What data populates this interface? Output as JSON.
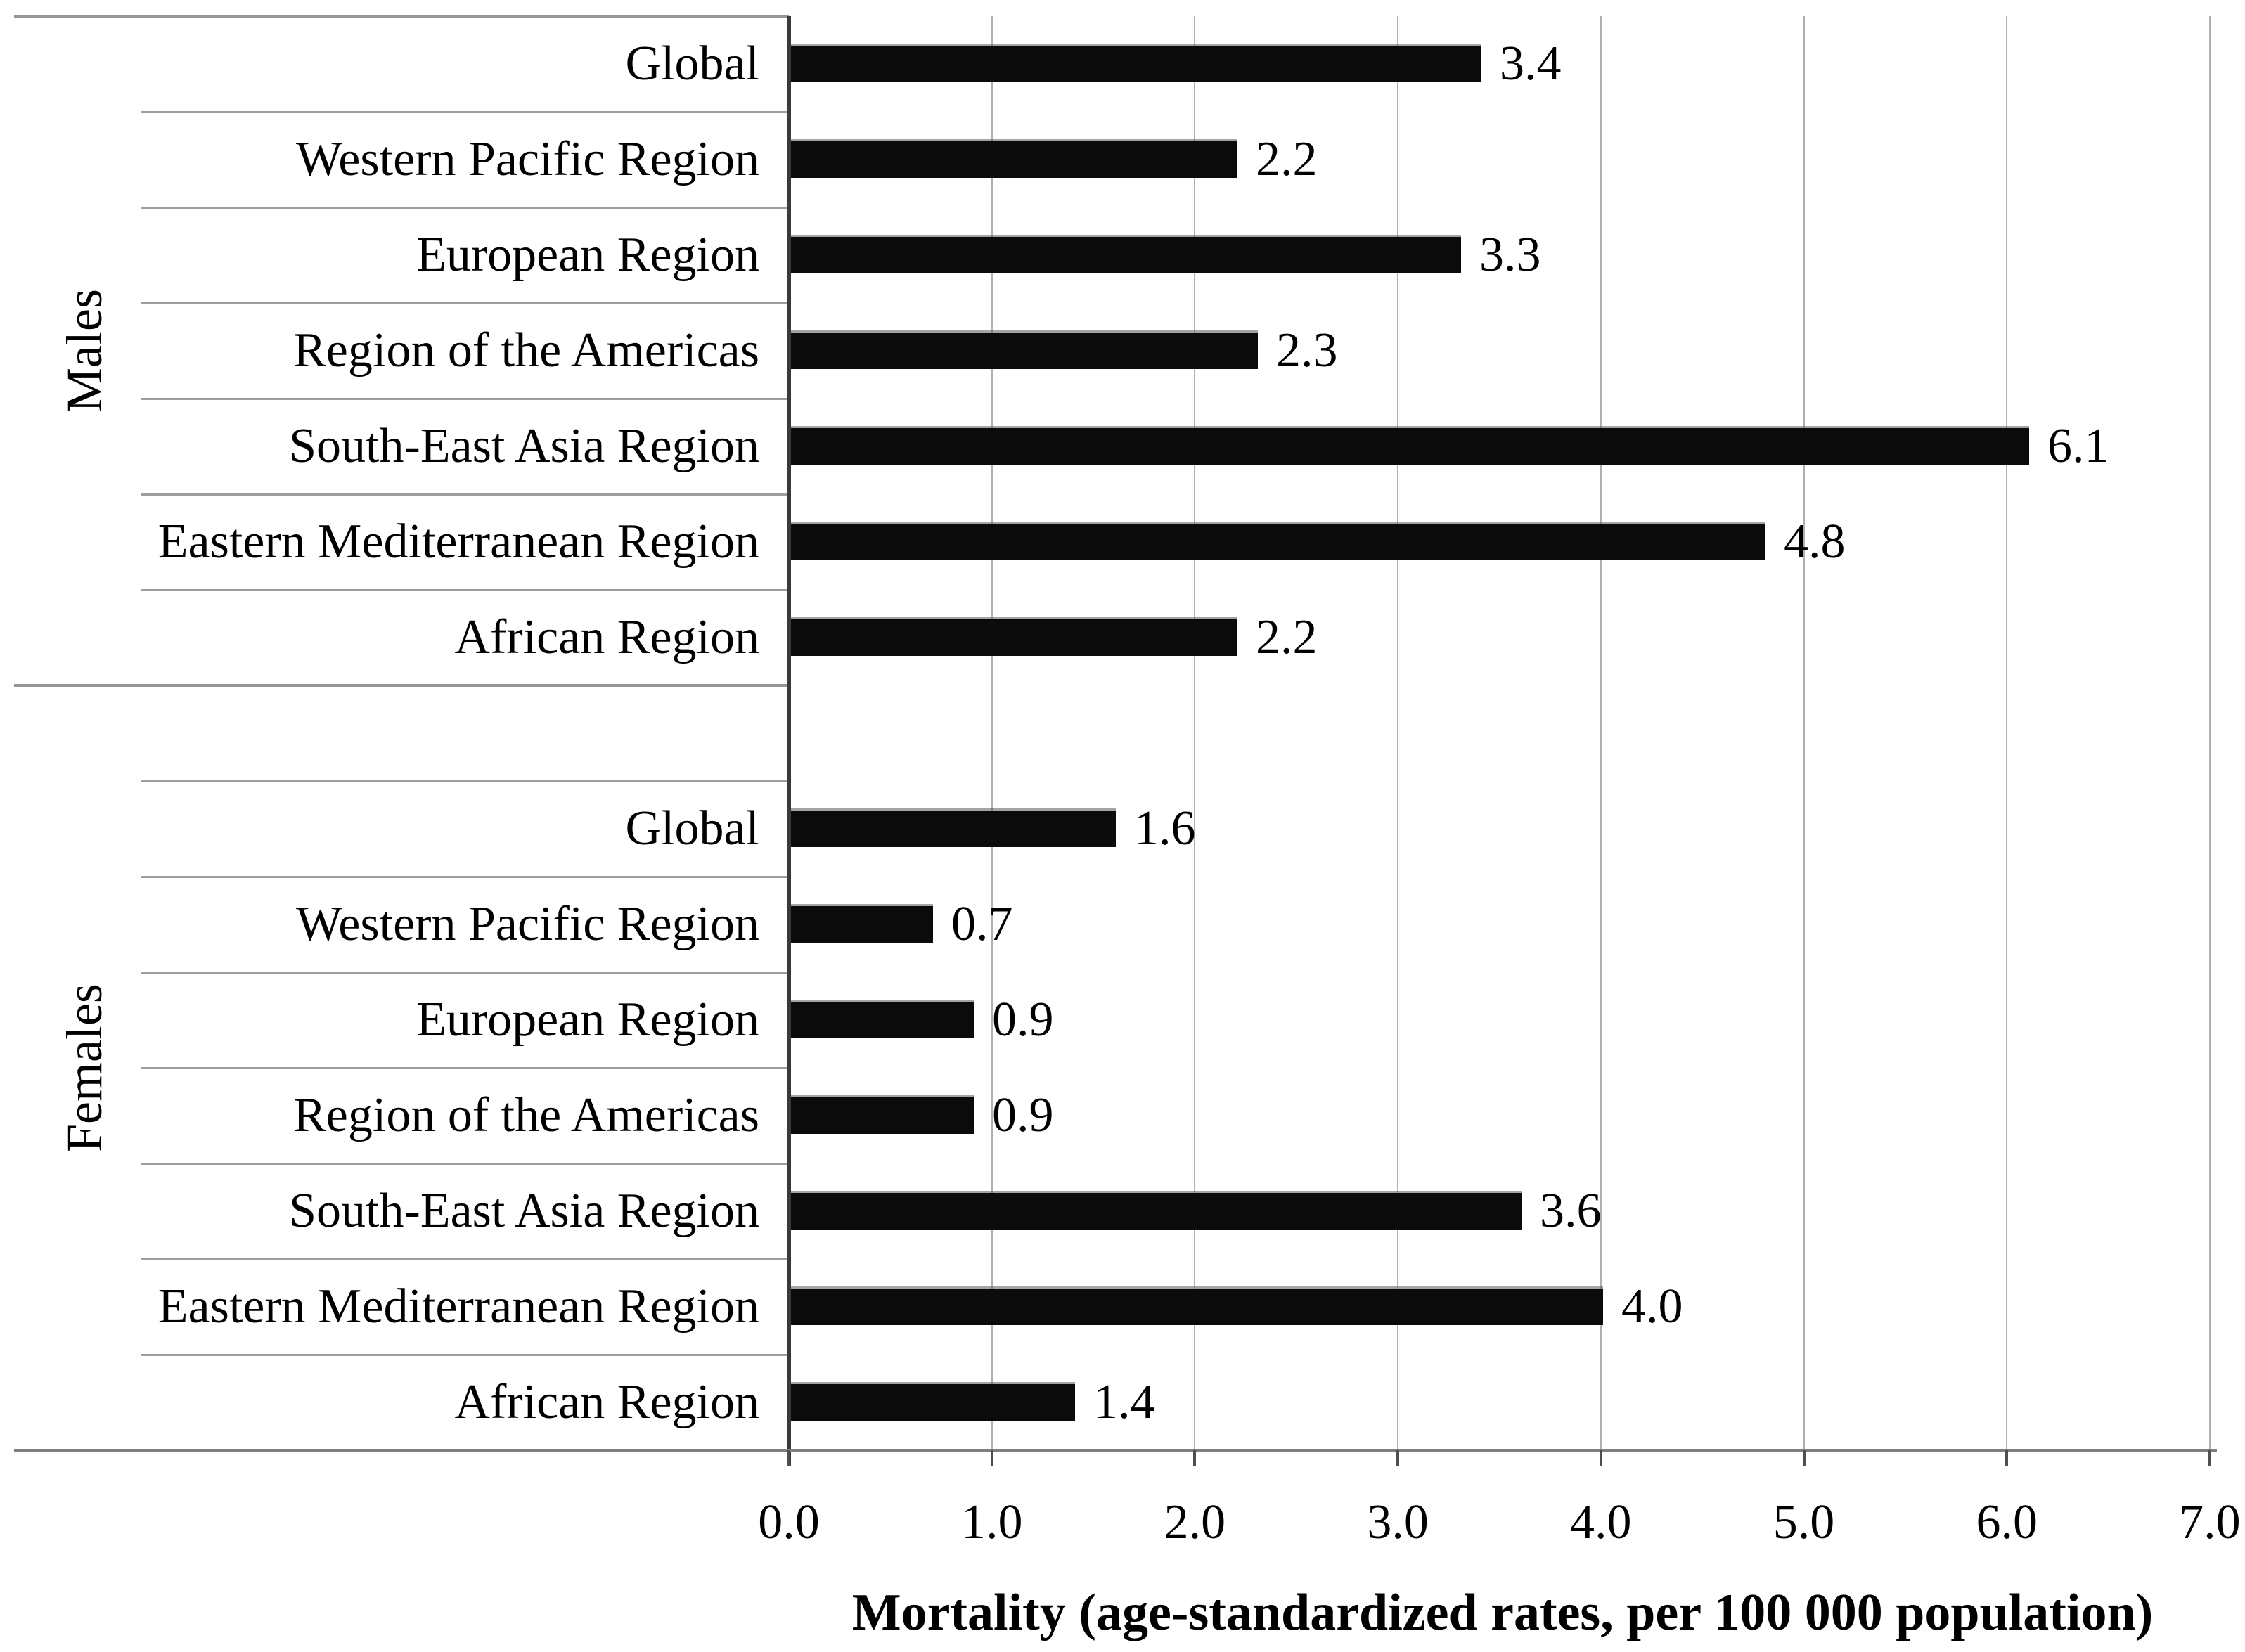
{
  "chart_data": {
    "type": "bar",
    "orientation": "horizontal",
    "xlabel": "Mortality (age-standardized rates, per 100 000 population)",
    "xlim": [
      0.0,
      7.0
    ],
    "x_tick_labels": [
      "0.0",
      "1.0",
      "2.0",
      "3.0",
      "4.0",
      "5.0",
      "6.0",
      "7.0"
    ],
    "grid": "vertical-gridlines-every-1.0",
    "legend_position": "none",
    "bar_color": "#0b0b0b",
    "groups": [
      {
        "name": "Males",
        "categories": [
          "Global",
          "Western Pacific Region",
          "European Region",
          "Region of the Americas",
          "South-East Asia Region",
          "Eastern Mediterranean Region",
          "African Region"
        ],
        "values": [
          3.4,
          2.2,
          3.3,
          2.3,
          6.1,
          4.8,
          2.2
        ],
        "value_labels": [
          "3.4",
          "2.2",
          "3.3",
          "2.3",
          "6.1",
          "4.8",
          "2.2"
        ]
      },
      {
        "name": "Females",
        "categories": [
          "Global",
          "Western Pacific Region",
          "European Region",
          "Region of the Americas",
          "South-East Asia Region",
          "Eastern Mediterranean Region",
          "African Region"
        ],
        "values": [
          1.6,
          0.7,
          0.9,
          0.9,
          3.6,
          4.0,
          1.4
        ],
        "value_labels": [
          "1.6",
          "0.7",
          "0.9",
          "0.9",
          "3.6",
          "4.0",
          "1.4"
        ]
      }
    ]
  }
}
